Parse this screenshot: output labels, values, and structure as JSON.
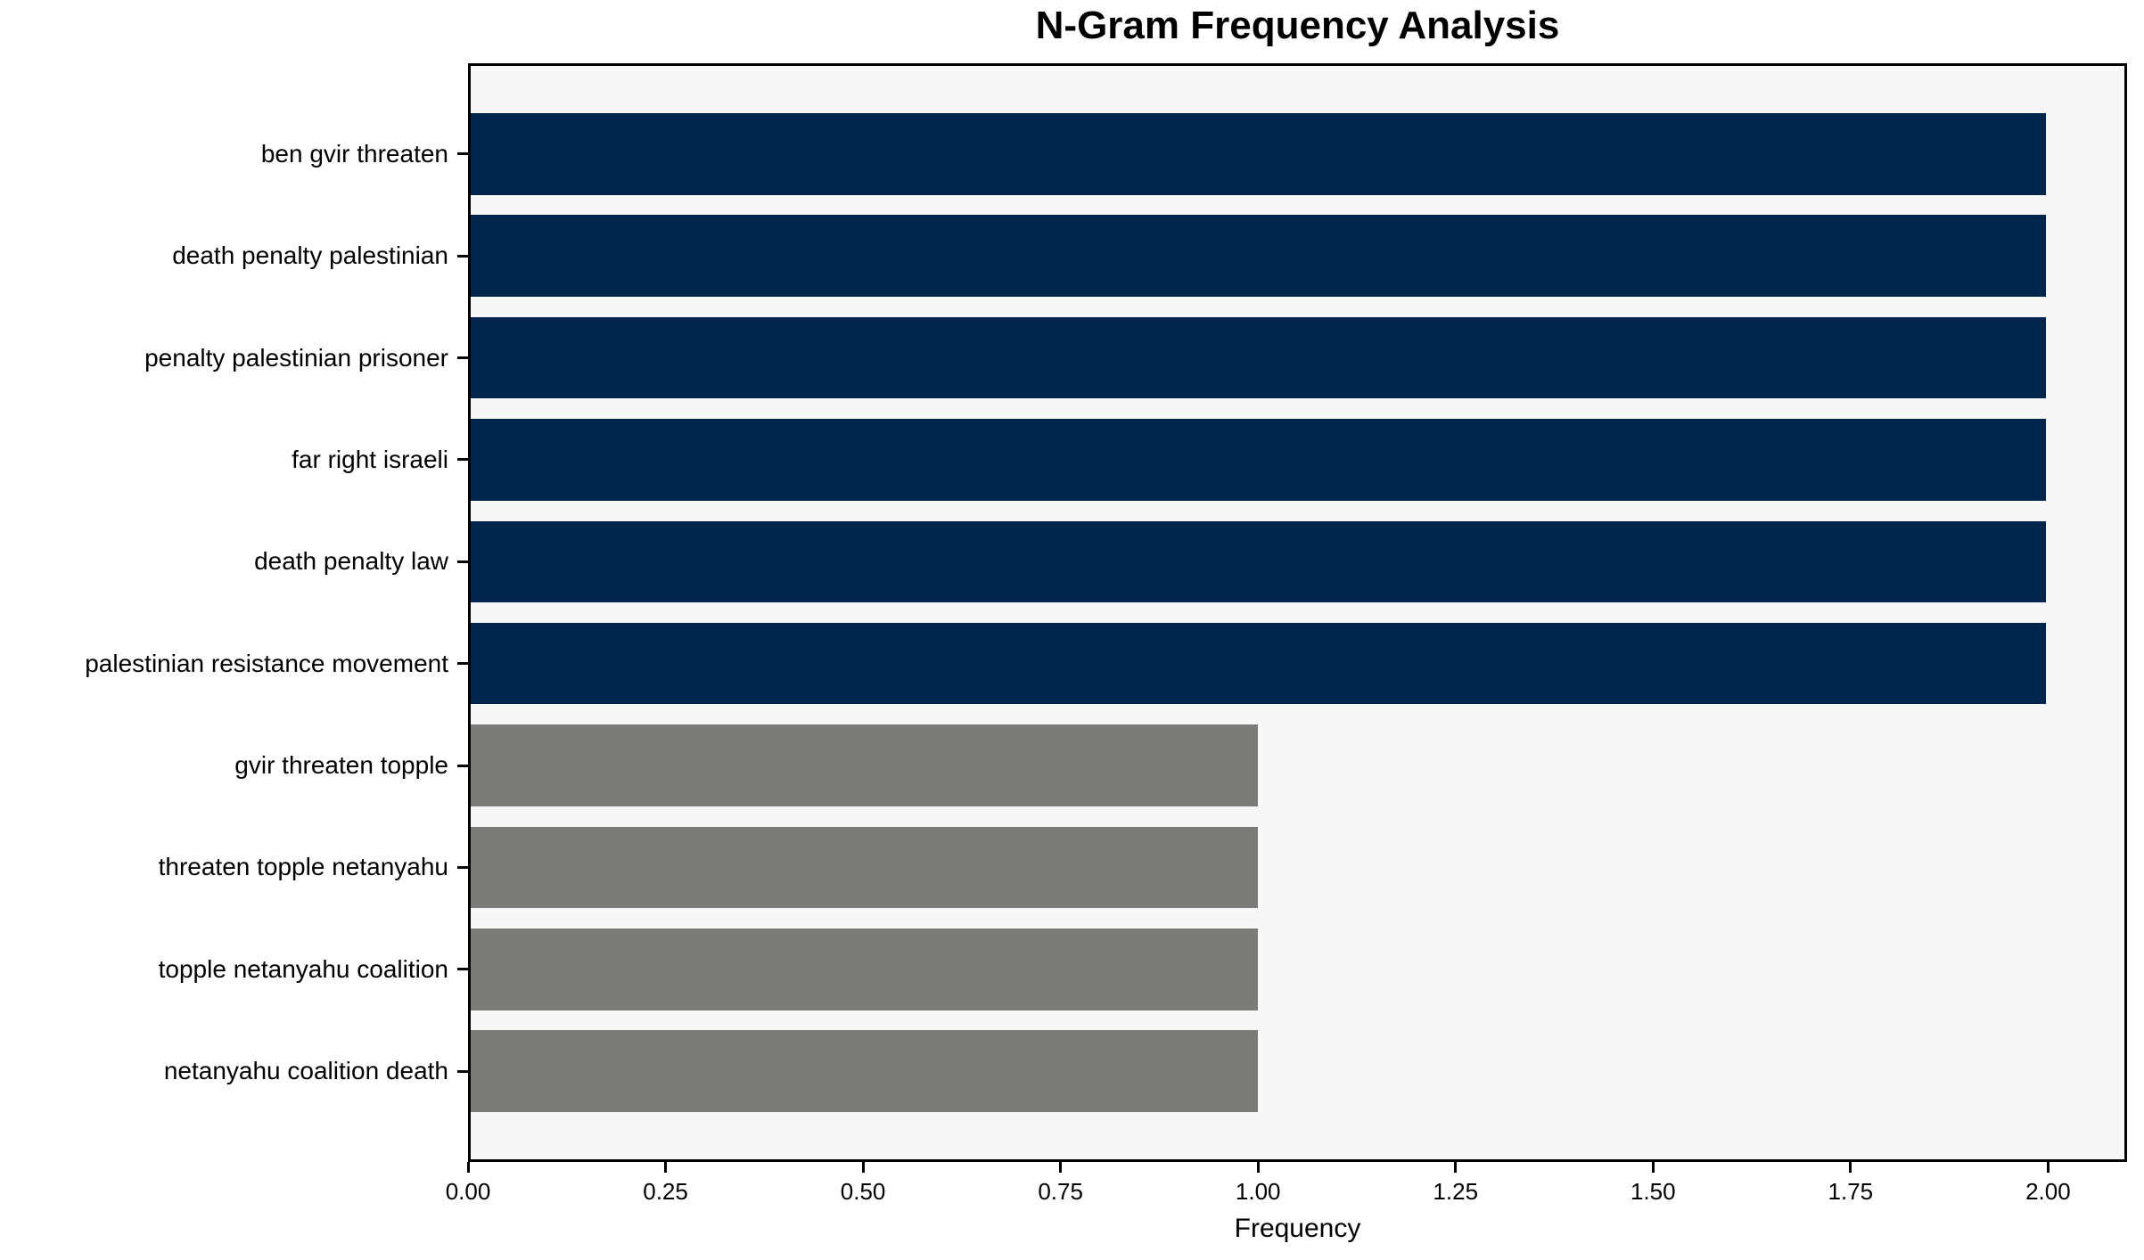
{
  "chart_data": {
    "type": "bar",
    "orientation": "horizontal",
    "title": "N-Gram Frequency Analysis",
    "xlabel": "Frequency",
    "ylabel": "",
    "categories": [
      "ben gvir threaten",
      "death penalty palestinian",
      "penalty palestinian prisoner",
      "far right israeli",
      "death penalty law",
      "palestinian resistance movement",
      "gvir threaten topple",
      "threaten topple netanyahu",
      "topple netanyahu coalition",
      "netanyahu coalition death"
    ],
    "values": [
      2,
      2,
      2,
      2,
      2,
      2,
      1,
      1,
      1,
      1
    ],
    "bar_colors": [
      "#02254d",
      "#02254d",
      "#02254d",
      "#02254d",
      "#02254d",
      "#02254d",
      "#7b7b78",
      "#7b7b78",
      "#7b7b78",
      "#7b7b78"
    ],
    "xlim": [
      0,
      2.1
    ],
    "xtick_values": [
      0,
      0.25,
      0.5,
      0.75,
      1.0,
      1.25,
      1.5,
      1.75,
      2.0
    ],
    "xtick_labels": [
      "0.00",
      "0.25",
      "0.50",
      "0.75",
      "1.00",
      "1.25",
      "1.50",
      "1.75",
      "2.00"
    ],
    "grid": false,
    "legend": null,
    "colors": {
      "plot_background": "#f7f7f7",
      "figure_background": "#ffffff",
      "axis": "#000000",
      "text": "#000000"
    }
  }
}
